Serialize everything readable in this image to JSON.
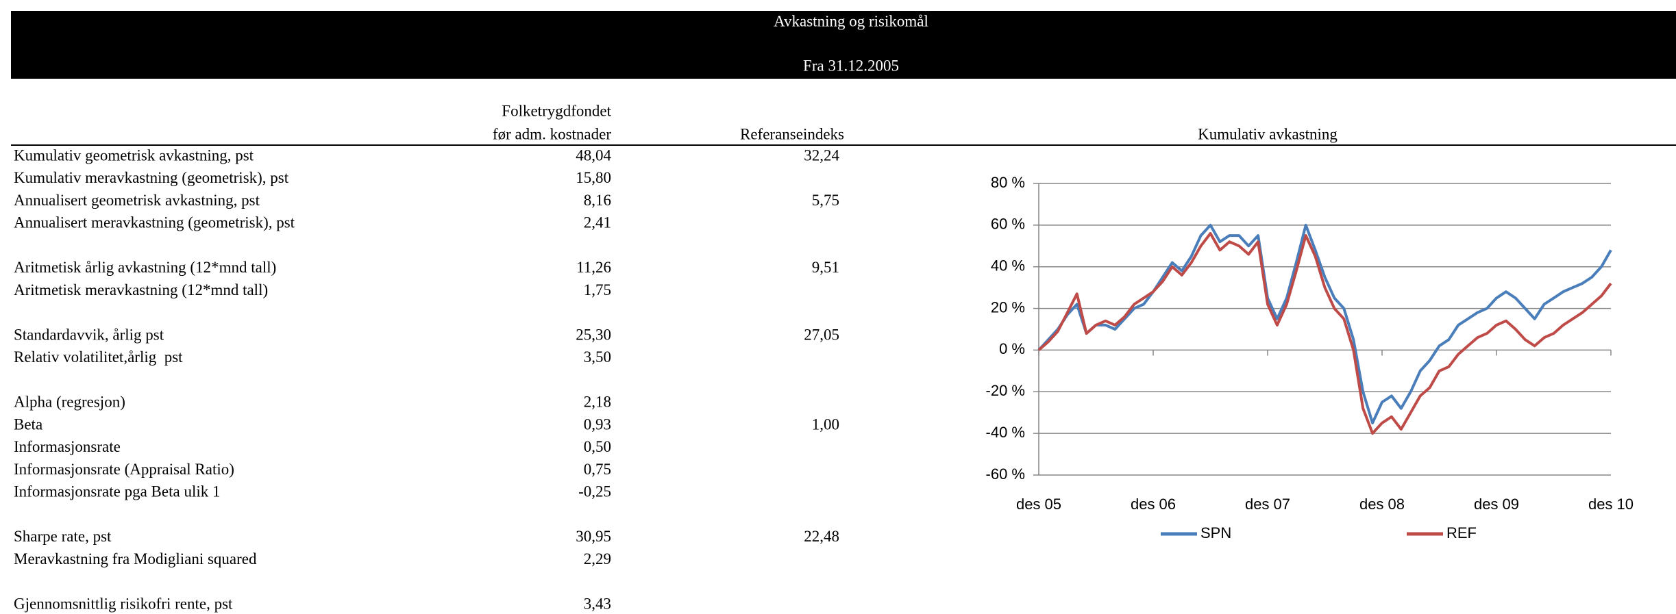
{
  "header": {
    "title": "Avkastning og risikomål",
    "subtitle": "Fra 31.12.2005"
  },
  "table": {
    "columns": [
      [
        "Folketrygdfondet",
        "før adm. kostnader"
      ],
      "Referanseindeks"
    ],
    "groups": [
      [
        [
          "Kumulativ geometrisk avkastning, pst",
          "48,04",
          "32,24"
        ],
        [
          "Kumulativ meravkastning (geometrisk), pst",
          "15,80"
        ],
        [
          "Annualisert geometrisk avkastning, pst",
          "8,16",
          "5,75"
        ],
        [
          "Annualisert meravkastning (geometrisk), pst",
          "2,41"
        ]
      ],
      [
        [
          "Aritmetisk årlig avkastning (12*mnd tall)",
          "11,26",
          "9,51"
        ],
        [
          "Aritmetisk meravkastning (12*mnd tall)",
          "1,75"
        ]
      ],
      [
        [
          "Standardavvik, årlig pst",
          "25,30",
          "27,05"
        ],
        [
          "Relativ volatilitet,årlig  pst",
          "3,50"
        ]
      ],
      [
        [
          "Alpha (regresjon)",
          "2,18"
        ],
        [
          "Beta",
          "0,93",
          "1,00"
        ],
        [
          "Informasjonsrate",
          "0,50"
        ],
        [
          "Informasjonsrate (Appraisal Ratio)",
          "0,75"
        ],
        [
          "Informasjonsrate pga Beta ulik 1",
          "-0,25"
        ]
      ],
      [
        [
          "Sharpe rate, pst",
          "30,95",
          "22,48"
        ],
        [
          "Meravkastning fra Modigliani squared",
          "2,29"
        ]
      ],
      [
        [
          "Gjennomsnittlig risikofri rente, pst",
          "3,43"
        ]
      ]
    ]
  },
  "chart_data": {
    "type": "line",
    "title": "Kumulativ avkastning",
    "categories": [
      "des 05",
      null,
      null,
      null,
      null,
      null,
      null,
      null,
      null,
      null,
      null,
      null,
      "des 06",
      null,
      null,
      null,
      null,
      null,
      null,
      null,
      null,
      null,
      null,
      null,
      "des 07",
      null,
      null,
      null,
      null,
      null,
      null,
      null,
      null,
      null,
      null,
      null,
      "des 08",
      null,
      null,
      null,
      null,
      null,
      null,
      null,
      null,
      null,
      null,
      null,
      "des 09",
      null,
      null,
      null,
      null,
      null,
      null,
      null,
      null,
      null,
      null,
      null,
      "des 10"
    ],
    "series": [
      {
        "name": "SPN",
        "color": "#4a7ebb",
        "values": [
          0,
          5,
          10,
          17,
          22,
          8,
          12,
          12,
          10,
          15,
          20,
          22,
          28,
          35,
          42,
          38,
          45,
          55,
          60,
          52,
          55,
          55,
          50,
          55,
          25,
          15,
          25,
          42,
          60,
          48,
          35,
          25,
          20,
          5,
          -20,
          -35,
          -25,
          -22,
          -28,
          -20,
          -10,
          -5,
          2,
          5,
          12,
          15,
          18,
          20,
          25,
          28,
          25,
          20,
          15,
          22,
          25,
          28,
          30,
          32,
          35,
          40,
          48
        ]
      },
      {
        "name": "REF",
        "color": "#be4b48",
        "values": [
          0,
          4,
          9,
          18,
          27,
          8,
          12,
          14,
          12,
          16,
          22,
          25,
          28,
          33,
          40,
          36,
          42,
          50,
          56,
          48,
          52,
          50,
          46,
          52,
          22,
          12,
          22,
          38,
          55,
          45,
          30,
          20,
          15,
          0,
          -28,
          -40,
          -35,
          -32,
          -38,
          -30,
          -22,
          -18,
          -10,
          -8,
          -2,
          2,
          6,
          8,
          12,
          14,
          10,
          5,
          2,
          6,
          8,
          12,
          15,
          18,
          22,
          26,
          32
        ]
      }
    ],
    "ylim": [
      -60,
      80
    ],
    "yticks": [
      {
        "value": -60,
        "label": "-60 %"
      },
      {
        "value": -40,
        "label": "-40 %"
      },
      {
        "value": -20,
        "label": "-20 %"
      },
      {
        "value": 0,
        "label": "0 %"
      },
      {
        "value": 20,
        "label": "20 %"
      },
      {
        "value": 40,
        "label": "40 %"
      },
      {
        "value": 60,
        "label": "60 %"
      },
      {
        "value": 80,
        "label": "80 %"
      }
    ],
    "grid": true
  }
}
